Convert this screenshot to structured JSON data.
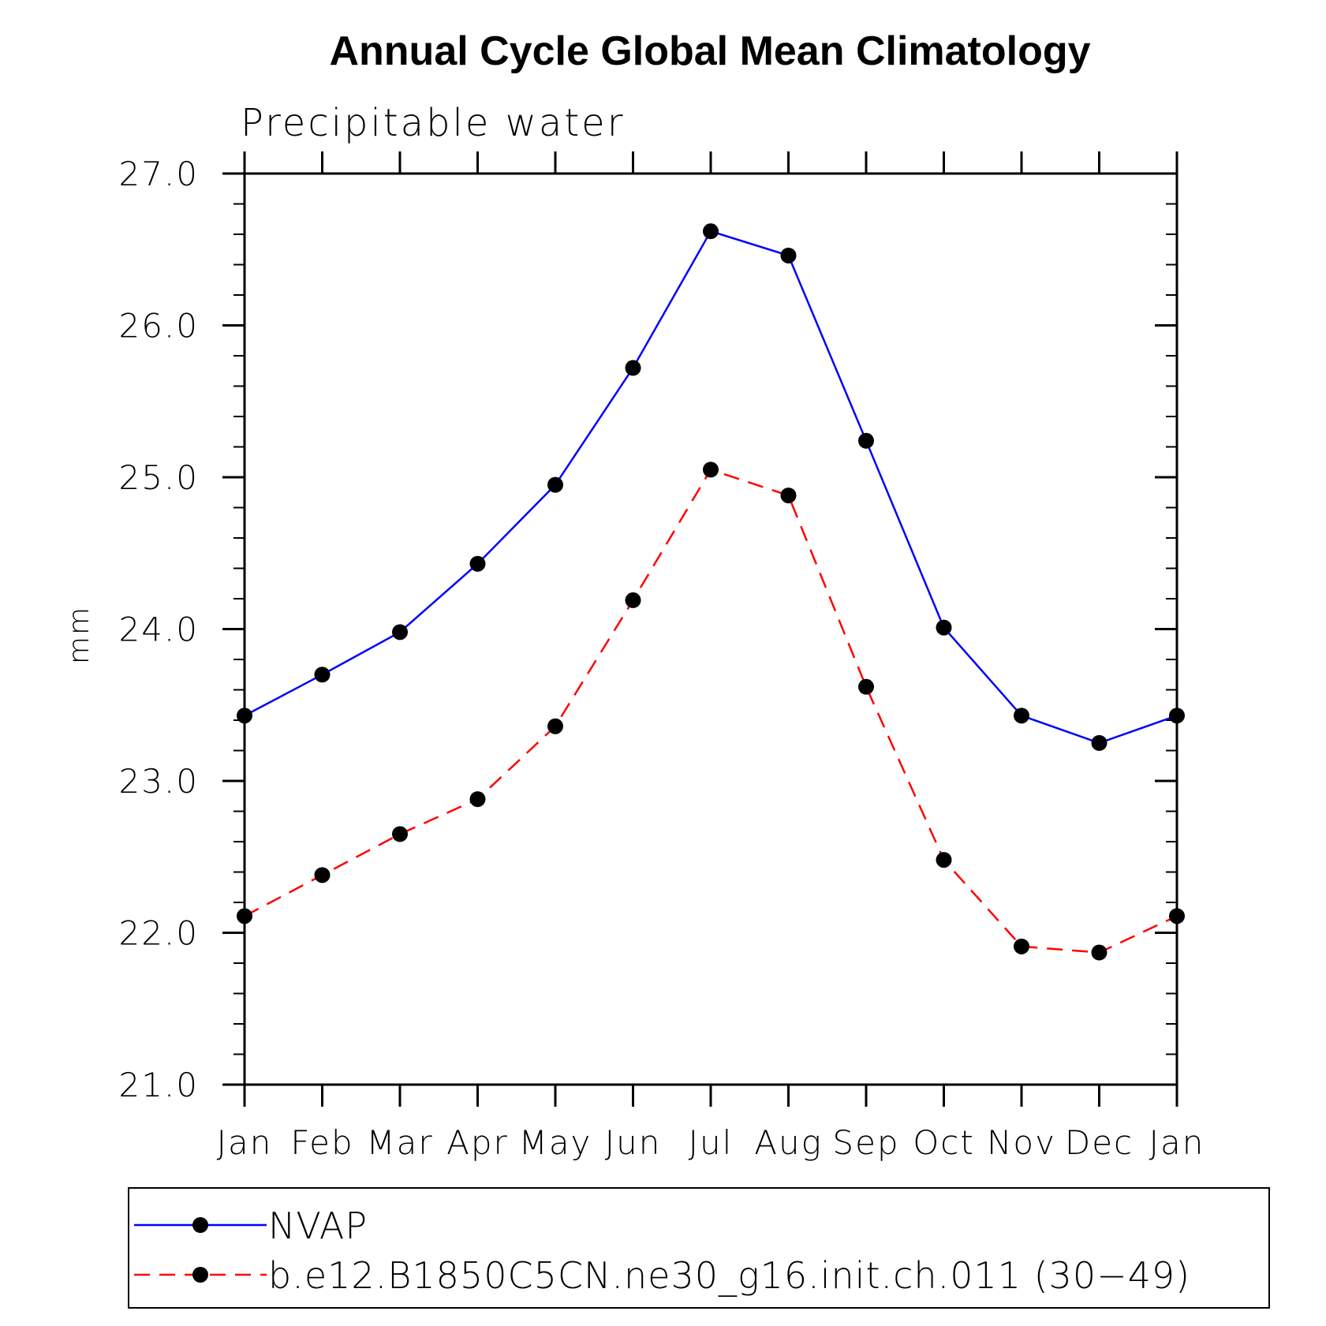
{
  "chart_data": {
    "type": "line",
    "title": "Annual Cycle Global Mean Climatology",
    "subtitle": "Precipitable water",
    "xlabel": "",
    "ylabel": "mm",
    "categories": [
      "Jan",
      "Feb",
      "Mar",
      "Apr",
      "May",
      "Jun",
      "Jul",
      "Aug",
      "Sep",
      "Oct",
      "Nov",
      "Dec",
      "Jan"
    ],
    "ylim": [
      21.0,
      27.0
    ],
    "yticks": [
      "21.0",
      "22.0",
      "23.0",
      "24.0",
      "25.0",
      "26.0",
      "27.0"
    ],
    "grid": false,
    "legend_position": "bottom",
    "series": [
      {
        "name": "NVAP",
        "color": "#0000ff",
        "line_style": "solid",
        "marker": "filled-circle",
        "values": [
          23.43,
          23.7,
          23.98,
          24.43,
          24.95,
          25.72,
          26.62,
          26.46,
          25.24,
          24.01,
          23.43,
          23.25,
          23.43
        ]
      },
      {
        "name": "b.e12.B1850C5CN.ne30_g16.init.ch.011 (30−49)",
        "color": "#ff0000",
        "line_style": "dashed",
        "marker": "filled-circle",
        "values": [
          22.11,
          22.38,
          22.65,
          22.88,
          23.36,
          24.19,
          25.05,
          24.88,
          23.62,
          22.48,
          21.91,
          21.87,
          22.11
        ]
      }
    ],
    "marker_color": "#000000"
  }
}
